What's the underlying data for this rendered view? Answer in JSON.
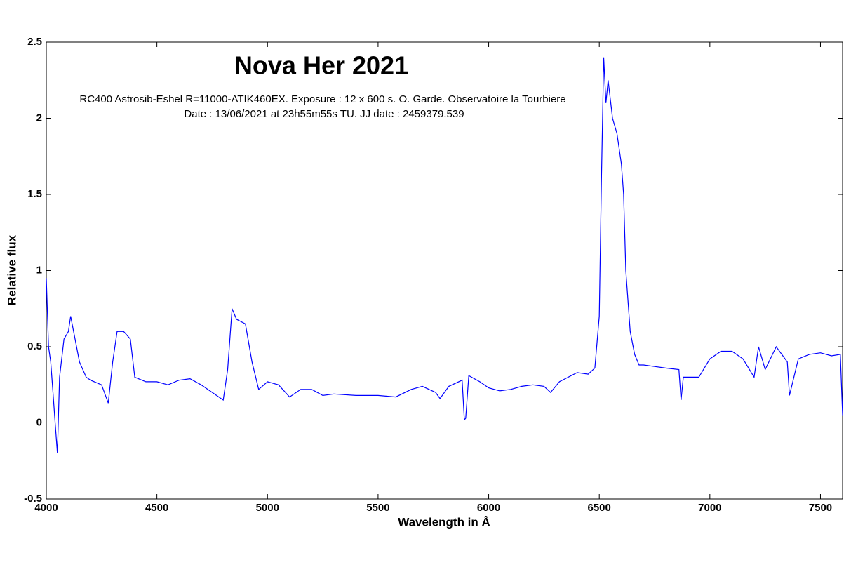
{
  "chart_data": {
    "type": "line",
    "title": "Nova Her 2021",
    "subtitle": [
      "RC400 Astrosib-Eshel R=11000-ATIK460EX. Exposure : 12 x 600 s. O. Garde. Observatoire la Tourbiere",
      "Date : 13/06/2021 at 23h55m55s TU. JJ date : 2459379.539"
    ],
    "xlabel": "Wavelength in Å",
    "ylabel": "Relative flux",
    "color": "#0000ff",
    "x": [
      4000,
      4010,
      4020,
      4030,
      4040,
      4050,
      4060,
      4080,
      4100,
      4110,
      4130,
      4150,
      4180,
      4200,
      4250,
      4280,
      4300,
      4320,
      4350,
      4380,
      4400,
      4450,
      4500,
      4550,
      4600,
      4650,
      4700,
      4750,
      4800,
      4820,
      4840,
      4860,
      4900,
      4930,
      4960,
      5000,
      5050,
      5100,
      5150,
      5200,
      5250,
      5300,
      5400,
      5500,
      5580,
      5650,
      5700,
      5760,
      5780,
      5820,
      5880,
      5890,
      5896,
      5910,
      5960,
      6000,
      6050,
      6100,
      6150,
      6200,
      6250,
      6280,
      6320,
      6400,
      6450,
      6480,
      6500,
      6510,
      6520,
      6530,
      6540,
      6560,
      6580,
      6600,
      6610,
      6620,
      6640,
      6660,
      6680,
      6700,
      6750,
      6800,
      6860,
      6870,
      6880,
      6900,
      6950,
      7000,
      7050,
      7100,
      7150,
      7200,
      7220,
      7250,
      7300,
      7350,
      7360,
      7400,
      7450,
      7500,
      7550,
      7590,
      7600
    ],
    "values": [
      0.95,
      0.5,
      0.4,
      0.2,
      0.0,
      -0.2,
      0.3,
      0.55,
      0.6,
      0.7,
      0.55,
      0.4,
      0.3,
      0.28,
      0.25,
      0.13,
      0.4,
      0.6,
      0.6,
      0.55,
      0.3,
      0.27,
      0.27,
      0.25,
      0.28,
      0.29,
      0.25,
      0.2,
      0.15,
      0.35,
      0.75,
      0.68,
      0.65,
      0.4,
      0.22,
      0.27,
      0.25,
      0.17,
      0.22,
      0.22,
      0.18,
      0.19,
      0.18,
      0.18,
      0.17,
      0.22,
      0.24,
      0.2,
      0.16,
      0.24,
      0.28,
      0.02,
      0.03,
      0.31,
      0.27,
      0.23,
      0.21,
      0.22,
      0.24,
      0.25,
      0.24,
      0.2,
      0.27,
      0.33,
      0.32,
      0.36,
      0.7,
      1.6,
      2.4,
      2.1,
      2.25,
      2.0,
      1.9,
      1.7,
      1.5,
      1.0,
      0.6,
      0.45,
      0.38,
      0.38,
      0.37,
      0.36,
      0.35,
      0.15,
      0.3,
      0.3,
      0.3,
      0.42,
      0.47,
      0.47,
      0.42,
      0.3,
      0.5,
      0.35,
      0.5,
      0.4,
      0.18,
      0.42,
      0.45,
      0.46,
      0.44,
      0.45,
      0.05
    ],
    "xlim": [
      4000,
      7600
    ],
    "ylim": [
      -0.5,
      2.5
    ],
    "xticks": [
      4000,
      4500,
      5000,
      5500,
      6000,
      6500,
      7000,
      7500
    ],
    "yticks": [
      -0.5,
      0,
      0.5,
      1,
      1.5,
      2,
      2.5
    ],
    "grid": false
  }
}
